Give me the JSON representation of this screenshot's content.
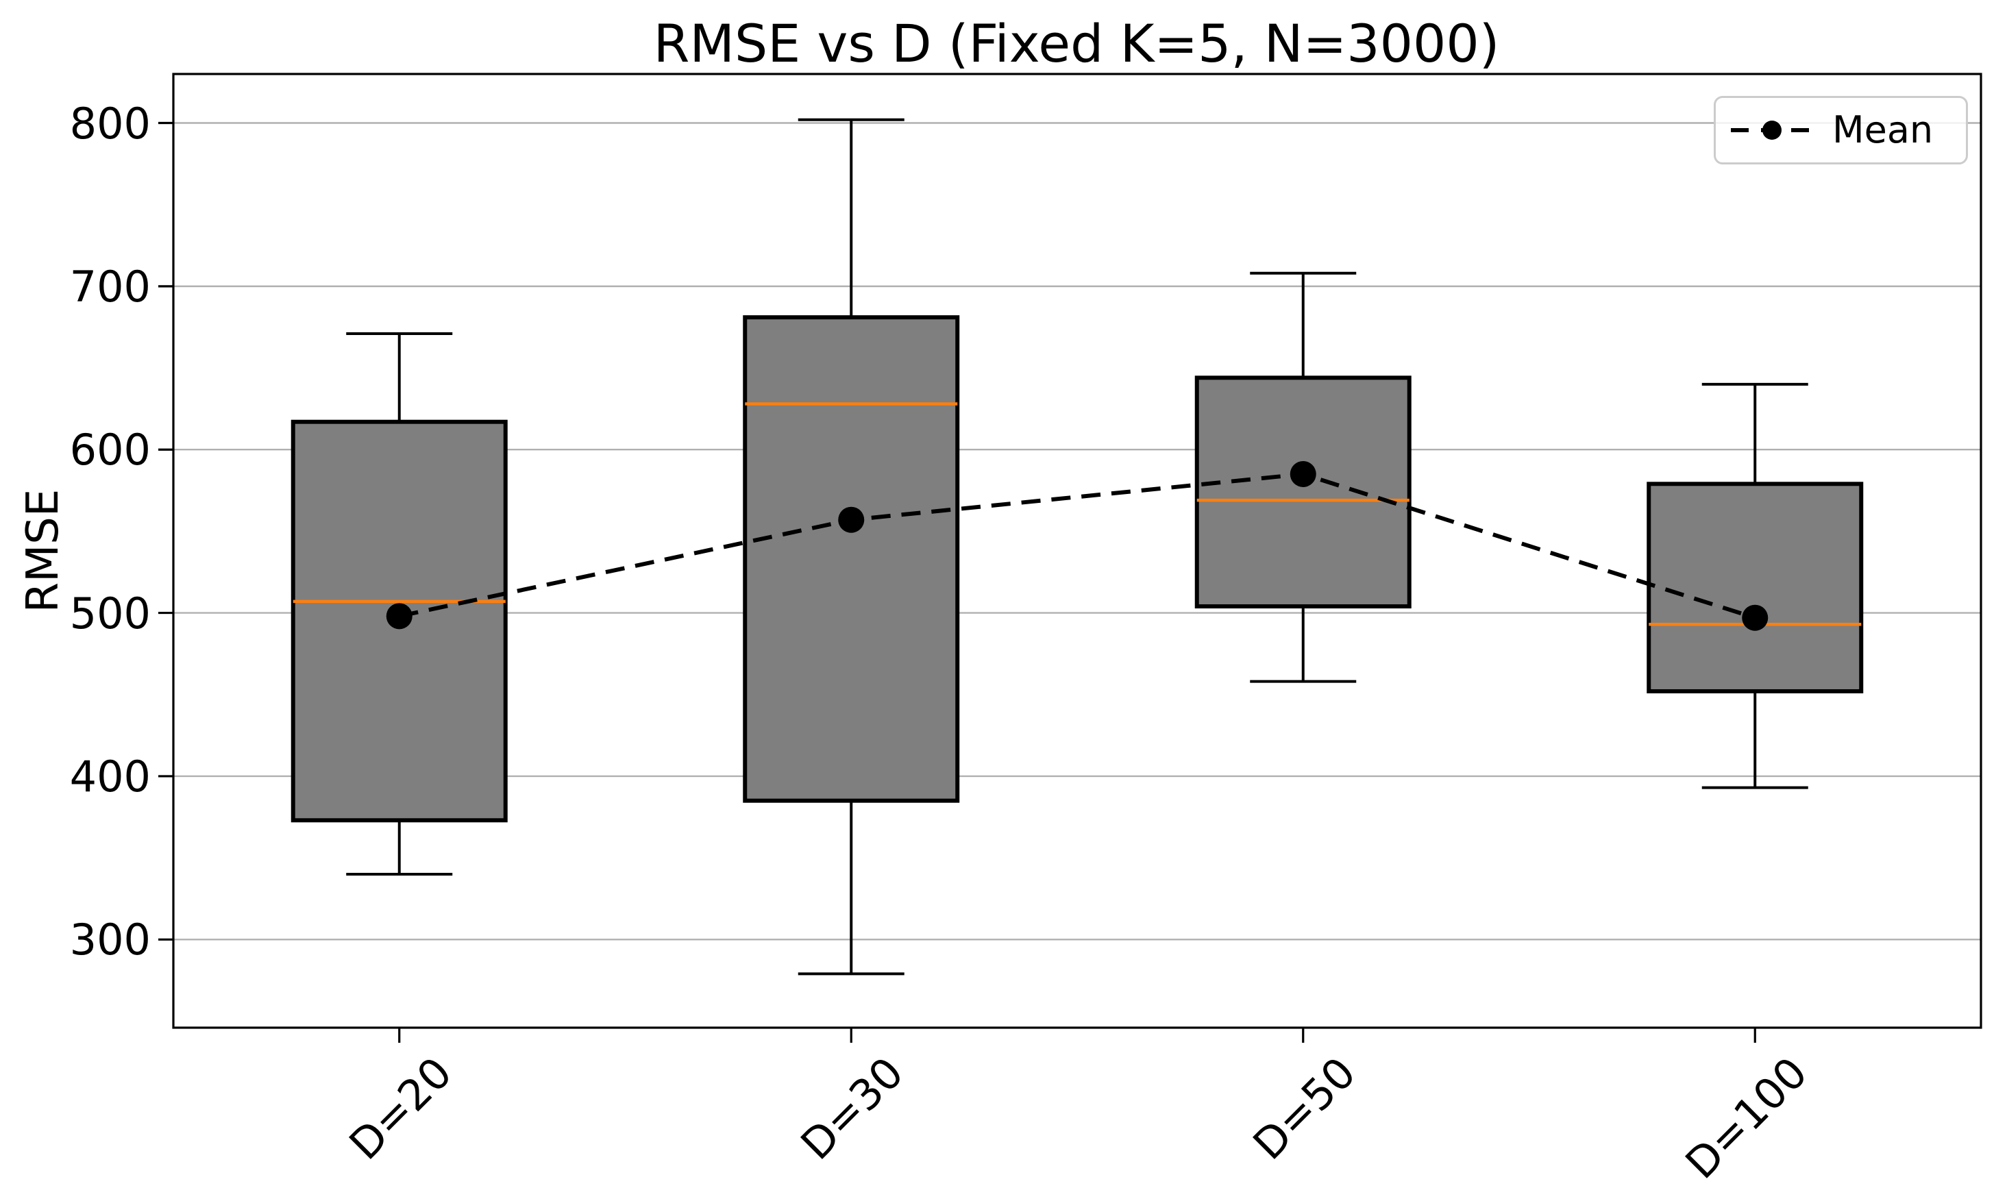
{
  "chart_data": {
    "type": "box",
    "title": "RMSE vs D (Fixed K=5, N=3000)",
    "xlabel": "",
    "ylabel": "RMSE",
    "categories": [
      "D=20",
      "D=30",
      "D=50",
      "D=100"
    ],
    "boxes": [
      {
        "category": "D=20",
        "whisker_low": 340,
        "q1": 373,
        "median": 507,
        "q3": 617,
        "whisker_high": 671,
        "mean": 498
      },
      {
        "category": "D=30",
        "whisker_low": 279,
        "q1": 385,
        "median": 628,
        "q3": 681,
        "whisker_high": 802,
        "mean": 557
      },
      {
        "category": "D=50",
        "whisker_low": 458,
        "q1": 504,
        "median": 569,
        "q3": 644,
        "whisker_high": 708,
        "mean": 585
      },
      {
        "category": "D=100",
        "whisker_low": 393,
        "q1": 452,
        "median": 493,
        "q3": 579,
        "whisker_high": 640,
        "mean": 497
      }
    ],
    "series": [
      {
        "name": "Mean",
        "line_style": "dashed",
        "marker": "circle",
        "values": [
          498,
          557,
          585,
          497
        ]
      }
    ],
    "yticks": [
      300,
      400,
      500,
      600,
      700,
      800
    ],
    "ylim": [
      246,
      830
    ],
    "grid": "horizontal",
    "legend": {
      "label": "Mean",
      "position": "upper right"
    },
    "colors": {
      "background": "#ffffff",
      "box_fill": "#7f7f7f",
      "box_edge": "#000000",
      "median": "#ff7f0e",
      "mean_line": "#000000",
      "grid": "#b0b0b0",
      "axis": "#000000",
      "legend_border": "#cccccc",
      "text": "#000000"
    }
  }
}
